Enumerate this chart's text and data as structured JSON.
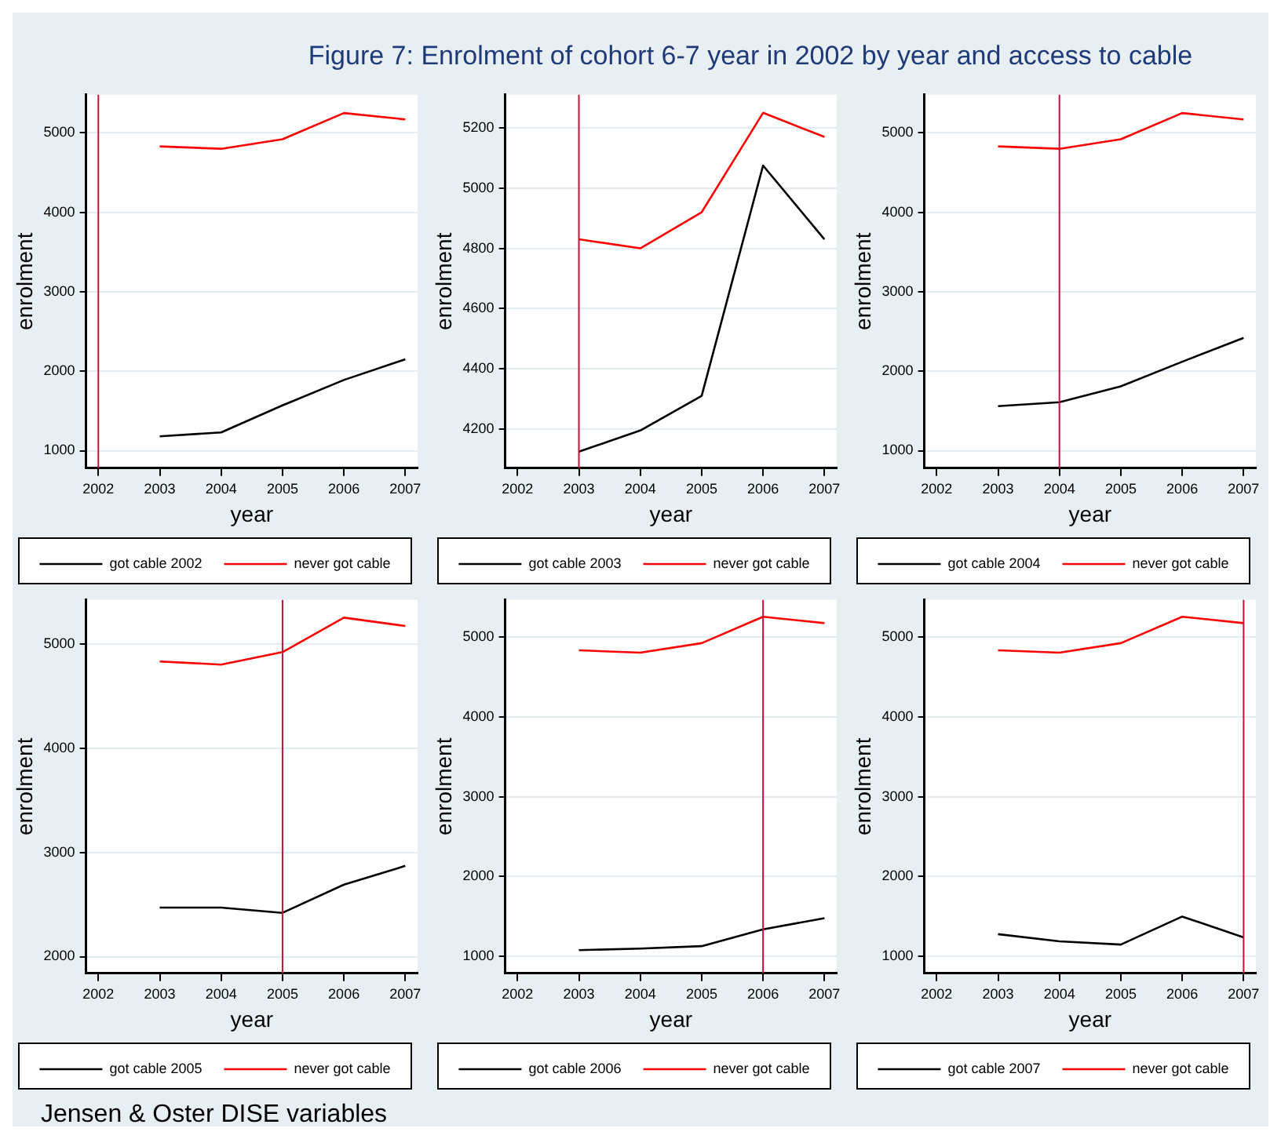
{
  "chart_data": [
    {
      "type": "line",
      "title": "Figure 7: Enrolment of cohort 6-7 year in 2002 by year and access to cable",
      "xlabel": "year",
      "ylabel": "enrolment",
      "x": [
        2003,
        2004,
        2005,
        2006,
        2007
      ],
      "xlim": [
        2001.8,
        2007.2
      ],
      "xticks": [
        2002,
        2003,
        2004,
        2005,
        2006,
        2007
      ],
      "ylim": [
        780,
        5480
      ],
      "yticks": [
        1000,
        2000,
        3000,
        4000,
        5000
      ],
      "grid": "y",
      "legend": "bottom",
      "series": [
        {
          "name": "got cable 2002",
          "color": "#000000",
          "values": [
            1180,
            1230,
            1570,
            1890,
            2150
          ]
        },
        {
          "name": "never got cable",
          "color": "#ff0000",
          "values": [
            4830,
            4800,
            4920,
            5250,
            5170
          ]
        }
      ],
      "ref_lines": [
        {
          "axis": "x",
          "value": 2002,
          "color": "#c8103a"
        }
      ]
    },
    {
      "type": "line",
      "xlabel": "year",
      "ylabel": "enrolment",
      "x": [
        2003,
        2004,
        2005,
        2006,
        2007
      ],
      "xlim": [
        2001.8,
        2007.2
      ],
      "xticks": [
        2002,
        2003,
        2004,
        2005,
        2006,
        2007
      ],
      "ylim": [
        4070,
        5310
      ],
      "yticks": [
        4200,
        4400,
        4600,
        4800,
        5000,
        5200
      ],
      "grid": "y",
      "legend": "bottom",
      "series": [
        {
          "name": "got cable 2003",
          "color": "#000000",
          "values": [
            4125,
            4195,
            4310,
            5075,
            4830
          ]
        },
        {
          "name": "never got cable",
          "color": "#ff0000",
          "values": [
            4830,
            4800,
            4920,
            5250,
            5170
          ]
        }
      ],
      "ref_lines": [
        {
          "axis": "x",
          "value": 2003,
          "color": "#c8103a"
        }
      ]
    },
    {
      "type": "line",
      "xlabel": "year",
      "ylabel": "enrolment",
      "x": [
        2003,
        2004,
        2005,
        2006,
        2007
      ],
      "xlim": [
        2001.8,
        2007.2
      ],
      "xticks": [
        2002,
        2003,
        2004,
        2005,
        2006,
        2007
      ],
      "ylim": [
        780,
        5480
      ],
      "yticks": [
        1000,
        2000,
        3000,
        4000,
        5000
      ],
      "grid": "y",
      "legend": "bottom",
      "series": [
        {
          "name": "got cable 2004",
          "color": "#000000",
          "values": [
            1560,
            1610,
            1810,
            2120,
            2420
          ]
        },
        {
          "name": "never got cable",
          "color": "#ff0000",
          "values": [
            4830,
            4800,
            4920,
            5250,
            5170
          ]
        }
      ],
      "ref_lines": [
        {
          "axis": "x",
          "value": 2004,
          "color": "#c8103a"
        }
      ]
    },
    {
      "type": "line",
      "xlabel": "year",
      "ylabel": "enrolment",
      "x": [
        2003,
        2004,
        2005,
        2006,
        2007
      ],
      "xlim": [
        2001.8,
        2007.2
      ],
      "xticks": [
        2002,
        2003,
        2004,
        2005,
        2006,
        2007
      ],
      "ylim": [
        1840,
        5420
      ],
      "yticks": [
        2000,
        3000,
        4000,
        5000
      ],
      "grid": "y",
      "legend": "bottom",
      "series": [
        {
          "name": "got cable 2005",
          "color": "#000000",
          "values": [
            2470,
            2470,
            2420,
            2690,
            2870
          ]
        },
        {
          "name": "never got cable",
          "color": "#ff0000",
          "values": [
            4830,
            4800,
            4920,
            5250,
            5170
          ]
        }
      ],
      "ref_lines": [
        {
          "axis": "x",
          "value": 2005,
          "color": "#c8103a"
        }
      ],
      "annotations": [
        "Jensen & Oster DISE variables"
      ]
    },
    {
      "type": "line",
      "xlabel": "year",
      "ylabel": "enrolment",
      "x": [
        2003,
        2004,
        2005,
        2006,
        2007
      ],
      "xlim": [
        2001.8,
        2007.2
      ],
      "xticks": [
        2002,
        2003,
        2004,
        2005,
        2006,
        2007
      ],
      "ylim": [
        790,
        5460
      ],
      "yticks": [
        1000,
        2000,
        3000,
        4000,
        5000
      ],
      "grid": "y",
      "legend": "bottom",
      "series": [
        {
          "name": "got cable 2006",
          "color": "#000000",
          "values": [
            1080,
            1100,
            1130,
            1340,
            1480
          ]
        },
        {
          "name": "never got cable",
          "color": "#ff0000",
          "values": [
            4830,
            4800,
            4920,
            5250,
            5170
          ]
        }
      ],
      "ref_lines": [
        {
          "axis": "x",
          "value": 2006,
          "color": "#c8103a"
        }
      ]
    },
    {
      "type": "line",
      "xlabel": "year",
      "ylabel": "enrolment",
      "x": [
        2003,
        2004,
        2005,
        2006,
        2007
      ],
      "xlim": [
        2001.8,
        2007.2
      ],
      "xticks": [
        2002,
        2003,
        2004,
        2005,
        2006,
        2007
      ],
      "ylim": [
        790,
        5460
      ],
      "yticks": [
        1000,
        2000,
        3000,
        4000,
        5000
      ],
      "grid": "y",
      "legend": "bottom",
      "series": [
        {
          "name": "got cable 2007",
          "color": "#000000",
          "values": [
            1280,
            1190,
            1150,
            1500,
            1240
          ]
        },
        {
          "name": "never got cable",
          "color": "#ff0000",
          "values": [
            4830,
            4800,
            4920,
            5250,
            5170
          ]
        }
      ],
      "ref_lines": [
        {
          "axis": "x",
          "value": 2007,
          "color": "#c8103a"
        }
      ]
    }
  ]
}
